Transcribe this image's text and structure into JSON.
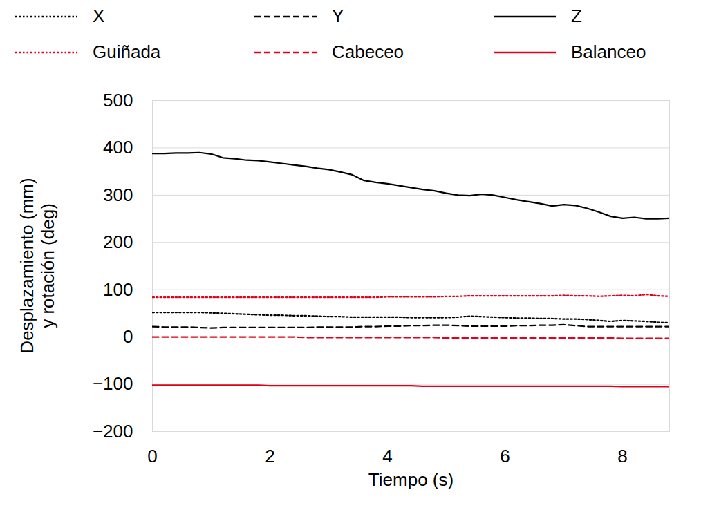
{
  "chart_data": {
    "type": "line",
    "xlabel": "Tiempo (s)",
    "ylabel": "Desplazamiento (mm)\ny rotación (deg)",
    "x": [
      0,
      0.2,
      0.4,
      0.6,
      0.8,
      1.0,
      1.2,
      1.4,
      1.6,
      1.8,
      2.0,
      2.2,
      2.4,
      2.6,
      2.8,
      3.0,
      3.2,
      3.4,
      3.6,
      3.8,
      4.0,
      4.2,
      4.4,
      4.6,
      4.8,
      5.0,
      5.2,
      5.4,
      5.6,
      5.8,
      6.0,
      6.2,
      6.4,
      6.6,
      6.8,
      7.0,
      7.2,
      7.4,
      7.6,
      7.8,
      8.0,
      8.2,
      8.4,
      8.6,
      8.8
    ],
    "xlim": [
      0,
      8.8
    ],
    "xticks": [
      0,
      2,
      4,
      6,
      8
    ],
    "ylim": [
      -200,
      500
    ],
    "yticks": [
      -200,
      -100,
      0,
      100,
      200,
      300,
      400,
      500
    ],
    "grid": true,
    "legend": "top",
    "series": [
      {
        "name": "X",
        "color": "#000000",
        "line_style": "dotted",
        "values": [
          52,
          52,
          52,
          52,
          52,
          51,
          50,
          49,
          48,
          47,
          46,
          46,
          45,
          45,
          44,
          43,
          43,
          42,
          42,
          42,
          42,
          42,
          41,
          41,
          41,
          41,
          42,
          44,
          43,
          42,
          41,
          40,
          40,
          39,
          39,
          38,
          38,
          37,
          35,
          33,
          35,
          34,
          33,
          31,
          30
        ]
      },
      {
        "name": "Y",
        "color": "#000000",
        "line_style": "dashed",
        "values": [
          22,
          21,
          21,
          21,
          20,
          19,
          20,
          20,
          20,
          20,
          20,
          20,
          20,
          20,
          21,
          21,
          21,
          21,
          22,
          22,
          23,
          23,
          24,
          24,
          25,
          25,
          24,
          23,
          23,
          23,
          23,
          24,
          24,
          25,
          25,
          26,
          24,
          22,
          22,
          22,
          22,
          22,
          22,
          22,
          22
        ]
      },
      {
        "name": "Z",
        "color": "#000000",
        "line_style": "solid",
        "values": [
          388,
          388,
          389,
          389,
          390,
          387,
          379,
          377,
          374,
          373,
          370,
          367,
          364,
          361,
          357,
          354,
          349,
          343,
          331,
          327,
          324,
          320,
          316,
          312,
          309,
          304,
          300,
          299,
          302,
          300,
          295,
          290,
          286,
          282,
          277,
          280,
          278,
          272,
          264,
          255,
          251,
          253,
          250,
          250,
          251
        ]
      },
      {
        "name": "Guiñada",
        "color": "#e2001a",
        "line_style": "dotted",
        "values": [
          84,
          84,
          84,
          84,
          84,
          84,
          84,
          84,
          84,
          84,
          84,
          84,
          84,
          84,
          84,
          84,
          84,
          84,
          84,
          84,
          85,
          85,
          85,
          85,
          85,
          86,
          86,
          87,
          87,
          87,
          87,
          87,
          87,
          87,
          87,
          88,
          87,
          87,
          86,
          87,
          88,
          87,
          90,
          87,
          86
        ]
      },
      {
        "name": "Cabeceo",
        "color": "#e2001a",
        "line_style": "dashed",
        "values": [
          0,
          0,
          0,
          0,
          0,
          0,
          0,
          0,
          0,
          0,
          0,
          0,
          0,
          -1,
          -1,
          -1,
          -1,
          -1,
          -1,
          -1,
          -1,
          -1,
          -1,
          -1,
          -1,
          -2,
          -2,
          -2,
          -2,
          -2,
          -2,
          -2,
          -2,
          -2,
          -2,
          -2,
          -2,
          -2,
          -2,
          -2,
          -3,
          -3,
          -3,
          -3,
          -3
        ]
      },
      {
        "name": "Balanceo",
        "color": "#e2001a",
        "line_style": "solid",
        "values": [
          -102,
          -102,
          -102,
          -102,
          -102,
          -102,
          -102,
          -102,
          -102,
          -102,
          -103,
          -103,
          -103,
          -103,
          -103,
          -103,
          -103,
          -103,
          -103,
          -103,
          -103,
          -103,
          -103,
          -104,
          -104,
          -104,
          -104,
          -104,
          -104,
          -104,
          -104,
          -104,
          -104,
          -104,
          -104,
          -104,
          -104,
          -104,
          -104,
          -104,
          -105,
          -105,
          -105,
          -105,
          -105
        ]
      }
    ]
  }
}
